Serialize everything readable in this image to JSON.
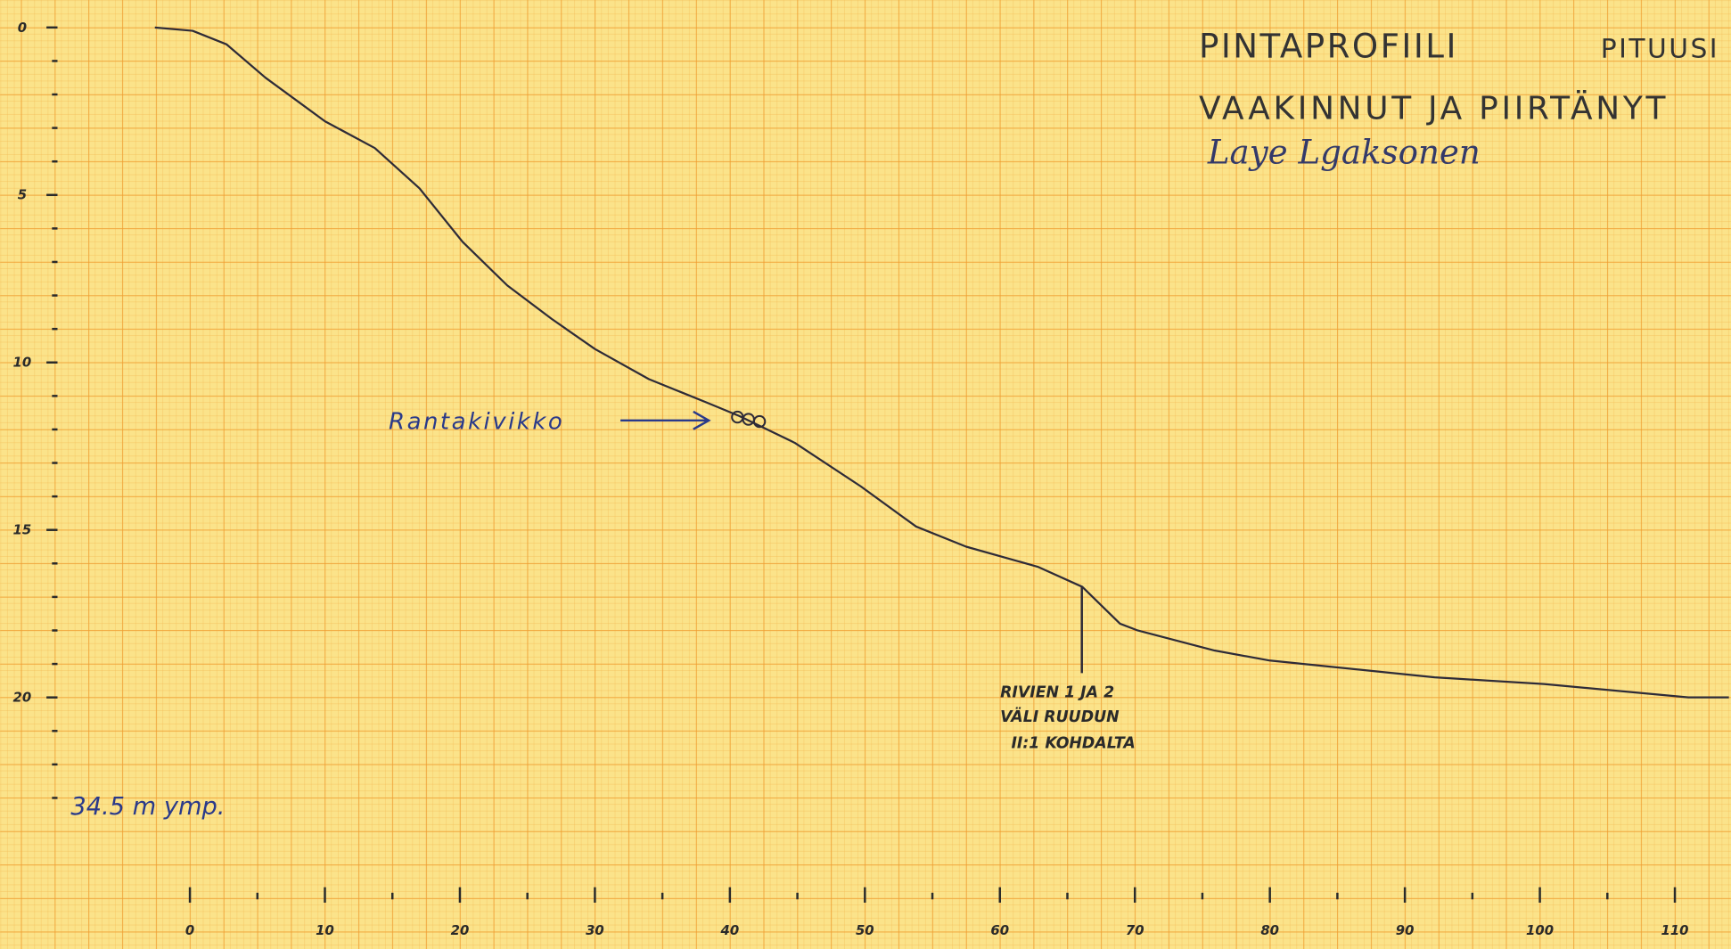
{
  "chart_data": {
    "type": "line",
    "title": "PINTAPROFIILI",
    "title_right": "PITUUSI",
    "subtitle": "VAAKINNUT JA PIIRTÄNYT",
    "signature": "Laye Lgaksonen",
    "annotations": {
      "shore": "Rantakivikko",
      "note": [
        "RIVIEN 1 JA 2",
        "VÄLI RUUDUN",
        "II:1 KOHDALTA"
      ],
      "elevation": "34.5 m ymp."
    },
    "x": [
      -2.6,
      0.2,
      2.7,
      5.6,
      10,
      13.7,
      17,
      20.2,
      23.5,
      26.8,
      30,
      34,
      38.3,
      40.7,
      44.8,
      49.7,
      53.8,
      57.5,
      62.8,
      66.1,
      68.9,
      70.2,
      75.9,
      80,
      92.2,
      100.3,
      111,
      114
    ],
    "series": [
      {
        "color": "#2e2b38",
        "values": [
          0,
          0.1,
          0.5,
          1.5,
          2.8,
          3.6,
          4.8,
          6.4,
          7.7,
          8.7,
          9.6,
          10.5,
          11.2,
          11.6,
          12.4,
          13.7,
          14.9,
          15.5,
          16.1,
          16.7,
          17.8,
          18.0,
          18.6,
          18.9,
          19.4,
          19.6,
          20.0,
          20.0
        ]
      }
    ],
    "xlim": [
      -14.06,
      114.15
    ],
    "ylim": [
      -0.82,
      27.51
    ],
    "y_reversed": true,
    "xticks": [
      0,
      10,
      20,
      30,
      40,
      50,
      60,
      70,
      80,
      90,
      100,
      110
    ],
    "xminorticks": [
      5,
      15,
      25,
      35,
      45,
      55,
      65,
      75,
      85,
      95,
      105
    ],
    "yticks": [
      0,
      5,
      10,
      15,
      20
    ],
    "yminorticks": [
      1,
      2,
      3,
      4,
      6,
      7,
      8,
      9,
      11,
      12,
      13,
      14,
      16,
      17,
      18,
      19,
      21,
      22,
      23
    ],
    "grid": true
  }
}
